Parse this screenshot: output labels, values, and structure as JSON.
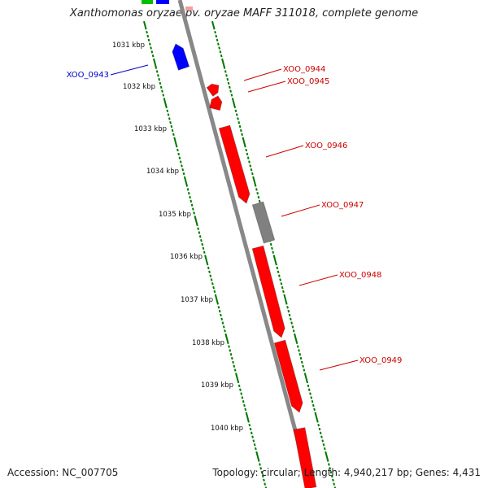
{
  "title": "Xanthomonas oryzae pv. oryzae MAFF 311018, complete genome",
  "footer": {
    "accession": "Accession: NC_007705",
    "summary": "Topology: circular; Length: 4,940,217 bp; Genes: 4,431"
  },
  "colors": {
    "forward_strand": "#ff0000",
    "reverse_strand": "#0000ff",
    "other_feature": "#808080",
    "extra_feature": "#00c000",
    "backbone": "#888888",
    "dotted_track": "#007700",
    "label_forward": "#cc0000",
    "label_reverse": "#0000cc"
  },
  "scale": {
    "unit": "kbp",
    "ticks": [
      {
        "kbp": 1031,
        "label": "1031 kbp"
      },
      {
        "kbp": 1032,
        "label": "1032 kbp"
      },
      {
        "kbp": 1033,
        "label": "1033 kbp"
      },
      {
        "kbp": 1034,
        "label": "1034 kbp"
      },
      {
        "kbp": 1035,
        "label": "1035 kbp"
      },
      {
        "kbp": 1036,
        "label": "1036 kbp"
      },
      {
        "kbp": 1037,
        "label": "1037 kbp"
      },
      {
        "kbp": 1038,
        "label": "1038 kbp"
      },
      {
        "kbp": 1039,
        "label": "1039 kbp"
      },
      {
        "kbp": 1040,
        "label": "1040 kbp"
      }
    ]
  },
  "genes": [
    {
      "label": "XOO_0943",
      "strand": "reverse",
      "color": "reverse_strand"
    },
    {
      "label": "XOO_0944",
      "strand": "forward",
      "color": "forward_strand"
    },
    {
      "label": "XOO_0945",
      "strand": "forward",
      "color": "forward_strand"
    },
    {
      "label": "XOO_0946",
      "strand": "forward",
      "color": "forward_strand"
    },
    {
      "label": "XOO_0947",
      "strand": "other",
      "color": "other_feature"
    },
    {
      "label": "XOO_0948",
      "strand": "forward",
      "color": "forward_strand"
    },
    {
      "label": "XOO_0949",
      "strand": "forward",
      "color": "forward_strand"
    }
  ]
}
